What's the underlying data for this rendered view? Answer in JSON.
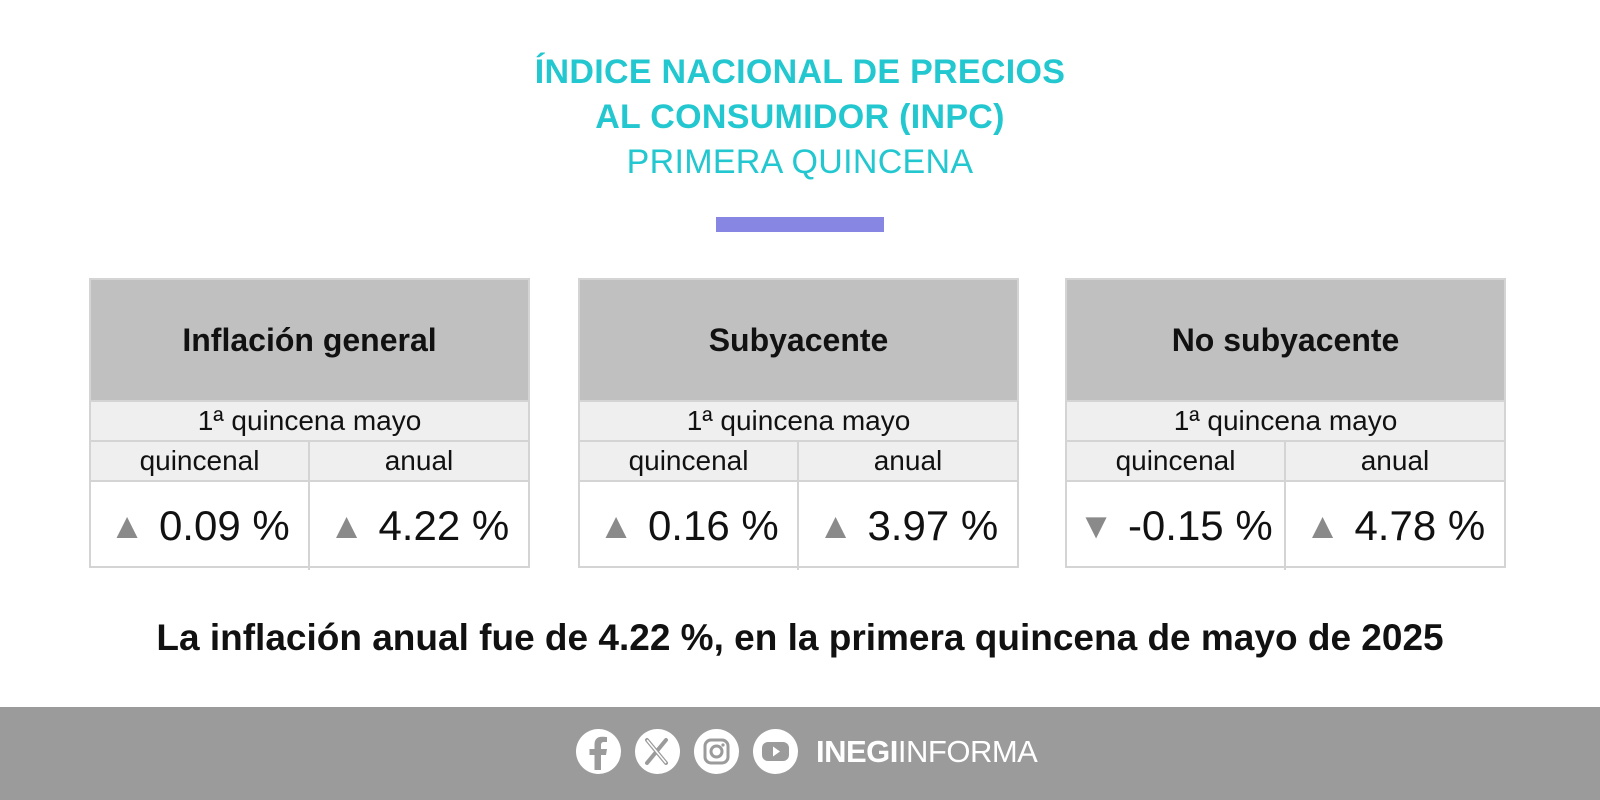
{
  "header": {
    "title_line1": "ÍNDICE NACIONAL DE PRECIOS",
    "title_line2": "AL CONSUMIDOR (INPC)",
    "subtitle": "PRIMERA QUINCENA"
  },
  "colors": {
    "title": "#22c7cf",
    "accent_bar": "#8787e3",
    "card_header": "#c0c0c0",
    "footer": "#9b9b9b"
  },
  "cards": [
    {
      "title": "Inflación general",
      "period": "1ª quincena mayo",
      "col1": "quincenal",
      "col2": "anual",
      "val1_arrow": "▲",
      "val1": "0.09 %",
      "val2_arrow": "▲",
      "val2": "4.22 %"
    },
    {
      "title": "Subyacente",
      "period": "1ª quincena mayo",
      "col1": "quincenal",
      "col2": "anual",
      "val1_arrow": "▲",
      "val1": "0.16 %",
      "val2_arrow": "▲",
      "val2": "3.97 %"
    },
    {
      "title": "No subyacente",
      "period": "1ª quincena mayo",
      "col1": "quincenal",
      "col2": "anual",
      "val1_arrow": "▼",
      "val1": "-0.15 %",
      "val2_arrow": "▲",
      "val2": "4.78 %"
    }
  ],
  "headline": "La inflación anual fue de 4.22 %, en la primera quincena de mayo de 2025",
  "footer": {
    "icons": [
      "facebook-icon",
      "x-icon",
      "instagram-icon",
      "youtube-icon"
    ],
    "brand_bold": "INEGI",
    "brand_light": "INFORMA"
  }
}
